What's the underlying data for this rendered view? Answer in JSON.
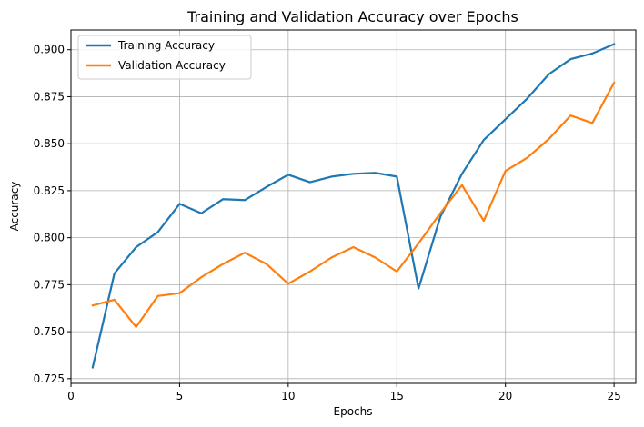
{
  "chart_data": {
    "type": "line",
    "title": "Training and Validation Accuracy over Epochs",
    "xlabel": "Epochs",
    "ylabel": "Accuracy",
    "xlim": [
      0,
      26
    ],
    "ylim": [
      0.7225,
      0.9105
    ],
    "xticks": [
      0,
      5,
      10,
      15,
      20,
      25
    ],
    "yticks": [
      0.725,
      0.75,
      0.775,
      0.8,
      0.825,
      0.85,
      0.875,
      0.9
    ],
    "ytick_labels": [
      "0.725",
      "0.750",
      "0.775",
      "0.800",
      "0.825",
      "0.850",
      "0.875",
      "0.900"
    ],
    "xtick_labels": [
      "0",
      "5",
      "10",
      "15",
      "20",
      "25"
    ],
    "grid": true,
    "legend_position": "top-left",
    "x": [
      1,
      2,
      3,
      4,
      5,
      6,
      7,
      8,
      9,
      10,
      11,
      12,
      13,
      14,
      15,
      16,
      17,
      18,
      19,
      20,
      21,
      22,
      23,
      24,
      25
    ],
    "series": [
      {
        "name": "Training Accuracy",
        "color": "#1f77b4",
        "values": [
          0.731,
          0.781,
          0.795,
          0.803,
          0.818,
          0.813,
          0.8205,
          0.82,
          0.827,
          0.8335,
          0.8295,
          0.8325,
          0.834,
          0.8345,
          0.8325,
          0.773,
          0.811,
          0.834,
          0.852,
          0.863,
          0.874,
          0.887,
          0.895,
          0.898,
          0.903
        ]
      },
      {
        "name": "Validation Accuracy",
        "color": "#ff7f0e",
        "values": [
          0.764,
          0.767,
          0.7525,
          0.769,
          0.7705,
          0.779,
          0.786,
          0.792,
          0.786,
          0.7755,
          0.782,
          0.7895,
          0.795,
          0.7895,
          0.782,
          0.797,
          0.813,
          0.828,
          0.809,
          0.8355,
          0.8425,
          0.8525,
          0.865,
          0.861,
          0.8825
        ]
      }
    ]
  }
}
